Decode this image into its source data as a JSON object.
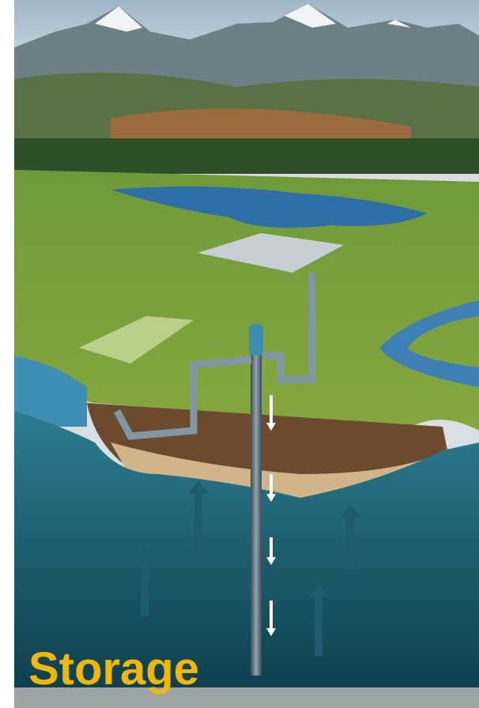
{
  "caption": "Storage"
}
